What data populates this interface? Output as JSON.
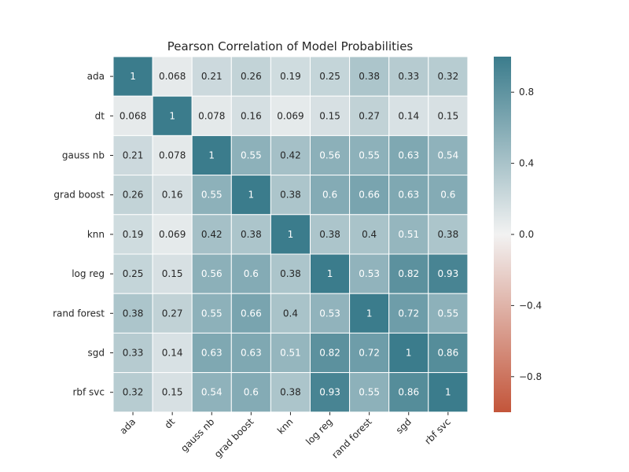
{
  "chart_data": {
    "type": "heatmap",
    "title": "Pearson Correlation of Model Probabilities",
    "rows": [
      "ada",
      "dt",
      "gauss nb",
      "grad boost",
      "knn",
      "log reg",
      "rand forest",
      "sgd",
      "rbf svc"
    ],
    "columns": [
      "ada",
      "dt",
      "gauss nb",
      "grad boost",
      "knn",
      "log reg",
      "rand forest",
      "sgd",
      "rbf svc"
    ],
    "values": [
      [
        1,
        0.068,
        0.21,
        0.26,
        0.19,
        0.25,
        0.38,
        0.33,
        0.32
      ],
      [
        0.068,
        1,
        0.078,
        0.16,
        0.069,
        0.15,
        0.27,
        0.14,
        0.15
      ],
      [
        0.21,
        0.078,
        1,
        0.55,
        0.42,
        0.56,
        0.55,
        0.63,
        0.54
      ],
      [
        0.26,
        0.16,
        0.55,
        1,
        0.38,
        0.6,
        0.66,
        0.63,
        0.6
      ],
      [
        0.19,
        0.069,
        0.42,
        0.38,
        1,
        0.38,
        0.4,
        0.51,
        0.38
      ],
      [
        0.25,
        0.15,
        0.56,
        0.6,
        0.38,
        1,
        0.53,
        0.82,
        0.93
      ],
      [
        0.38,
        0.27,
        0.55,
        0.66,
        0.4,
        0.53,
        1,
        0.72,
        0.55
      ],
      [
        0.33,
        0.14,
        0.63,
        0.63,
        0.51,
        0.82,
        0.72,
        1,
        0.86
      ],
      [
        0.32,
        0.15,
        0.54,
        0.6,
        0.38,
        0.93,
        0.55,
        0.86,
        1
      ]
    ],
    "vmin": -1,
    "vmax": 1,
    "colorbar_ticks": [
      0.8,
      0.4,
      0.0,
      -0.4,
      -0.8
    ],
    "colorbar_tick_labels": [
      "0.8",
      "0.4",
      "0.0",
      "−0.4",
      "−0.8"
    ],
    "colormap": {
      "negative_color": "#c3553a",
      "center_color": "#f2f2f2",
      "positive_color": "#3b7c8c"
    },
    "cell_border_color": "#ffffff",
    "annotation_text_dark": "#262626",
    "annotation_text_light": "#ffffff"
  }
}
